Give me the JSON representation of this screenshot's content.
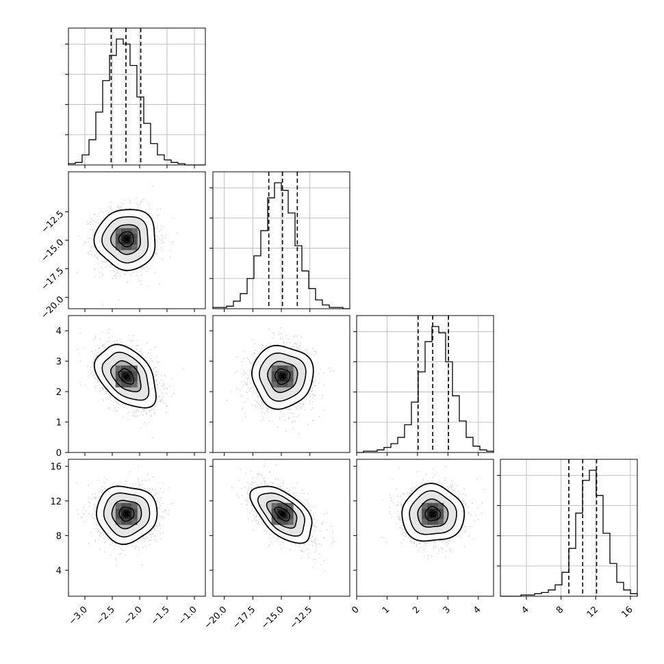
{
  "chart_data": {
    "type": "corner",
    "dims": 4,
    "params": [
      {
        "range": [
          -3.3,
          -0.8
        ],
        "ticks": [
          -3.0,
          -2.5,
          -2.0,
          -1.5,
          -1.0
        ],
        "tick_labels": [
          "−3.0",
          "−2.5",
          "−2.0",
          "−1.5",
          "−1.0"
        ],
        "mean": -2.24,
        "sd": 0.27,
        "quantiles": [
          -2.52,
          -2.25,
          -1.98
        ]
      },
      {
        "range": [
          -21.0,
          -9.0
        ],
        "ticks": [
          -20.0,
          -17.5,
          -15.0,
          -12.5
        ],
        "tick_labels": [
          "−20.0",
          "−17.5",
          "−15.0",
          "−12.5"
        ],
        "mean": -14.9,
        "sd": 1.3,
        "quantiles": [
          -16.1,
          -14.9,
          -13.6
        ]
      },
      {
        "range": [
          0.0,
          4.5
        ],
        "ticks": [
          0,
          1,
          2,
          3,
          4
        ],
        "tick_labels": [
          "0",
          "1",
          "2",
          "3",
          "4"
        ],
        "mean": 2.5,
        "sd": 0.5,
        "quantiles": [
          2.02,
          2.5,
          3.02
        ]
      },
      {
        "range": [
          1.0,
          16.8
        ],
        "ticks": [
          4,
          8,
          12,
          16
        ],
        "tick_labels": [
          "4",
          "8",
          "12",
          "16"
        ],
        "mean": 10.5,
        "sd": 1.6,
        "quantiles": [
          8.9,
          10.5,
          12.1
        ]
      }
    ],
    "histograms": [
      [
        0.01,
        0.02,
        0.08,
        0.2,
        0.42,
        0.67,
        0.87,
        1.0,
        0.96,
        0.79,
        0.54,
        0.33,
        0.17,
        0.08,
        0.04,
        0.02,
        0.01,
        0.0,
        0.0,
        0.0
      ],
      [
        0.01,
        0.01,
        0.02,
        0.06,
        0.12,
        0.24,
        0.42,
        0.62,
        0.88,
        1.0,
        0.94,
        0.76,
        0.5,
        0.3,
        0.16,
        0.07,
        0.03,
        0.01,
        0.01,
        0.0
      ],
      [
        0.0,
        0.01,
        0.01,
        0.02,
        0.04,
        0.07,
        0.12,
        0.22,
        0.4,
        0.64,
        0.88,
        1.0,
        0.95,
        0.72,
        0.45,
        0.25,
        0.12,
        0.05,
        0.02,
        0.01
      ],
      [
        0.0,
        0.0,
        0.0,
        0.01,
        0.01,
        0.02,
        0.03,
        0.05,
        0.09,
        0.19,
        0.38,
        0.66,
        0.92,
        1.0,
        0.8,
        0.5,
        0.26,
        0.11,
        0.05,
        0.02
      ]
    ],
    "correlations": {
      "1-0": 0.0,
      "2-0": -0.4,
      "2-1": 0.0,
      "3-0": 0.0,
      "3-1": -0.55,
      "3-2": 0.0
    },
    "grid": true,
    "style": {
      "line_color": "#000000",
      "scatter_color": "#9a9a9a",
      "grid_color": "#b0b0b0"
    }
  }
}
